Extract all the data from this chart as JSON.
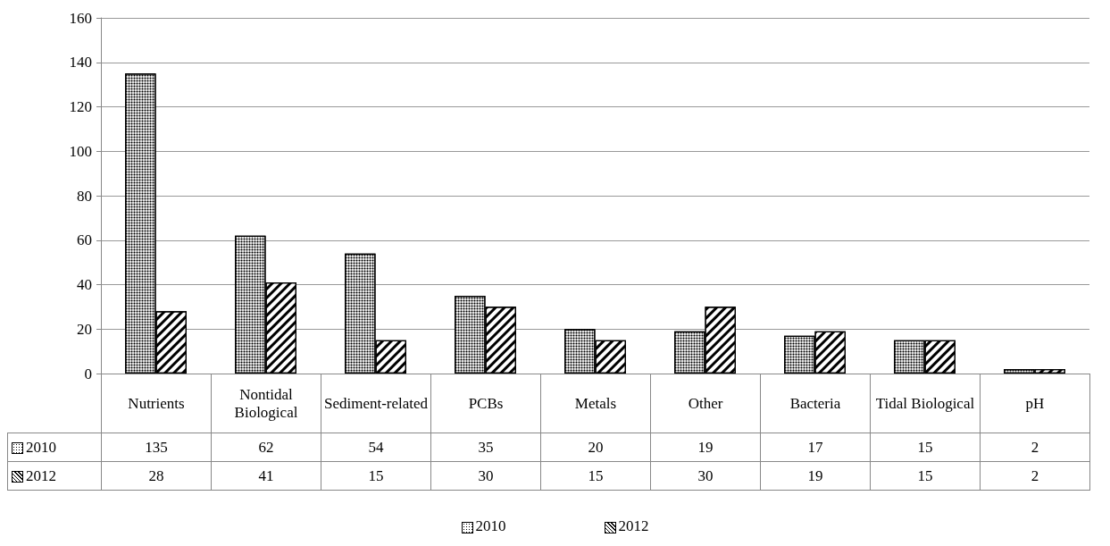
{
  "chart_data": {
    "type": "bar",
    "categories": [
      "Nutrients",
      "Nontidal Biological",
      "Sediment-related",
      "PCBs",
      "Metals",
      "Other",
      "Bacteria",
      "Tidal Biological",
      "pH"
    ],
    "series": [
      {
        "name": "2010",
        "color": "#ffffff",
        "values": [
          135,
          62,
          54,
          35,
          20,
          19,
          17,
          15,
          2
        ]
      },
      {
        "name": "2012",
        "color": "#ffffff",
        "values": [
          28,
          41,
          15,
          30,
          15,
          30,
          19,
          15,
          2
        ]
      }
    ],
    "ylim": [
      0,
      160
    ],
    "yticks": [
      0,
      20,
      40,
      60,
      80,
      100,
      120,
      140,
      160
    ],
    "grid": "y",
    "legend": "bottom",
    "data_labels": true
  }
}
